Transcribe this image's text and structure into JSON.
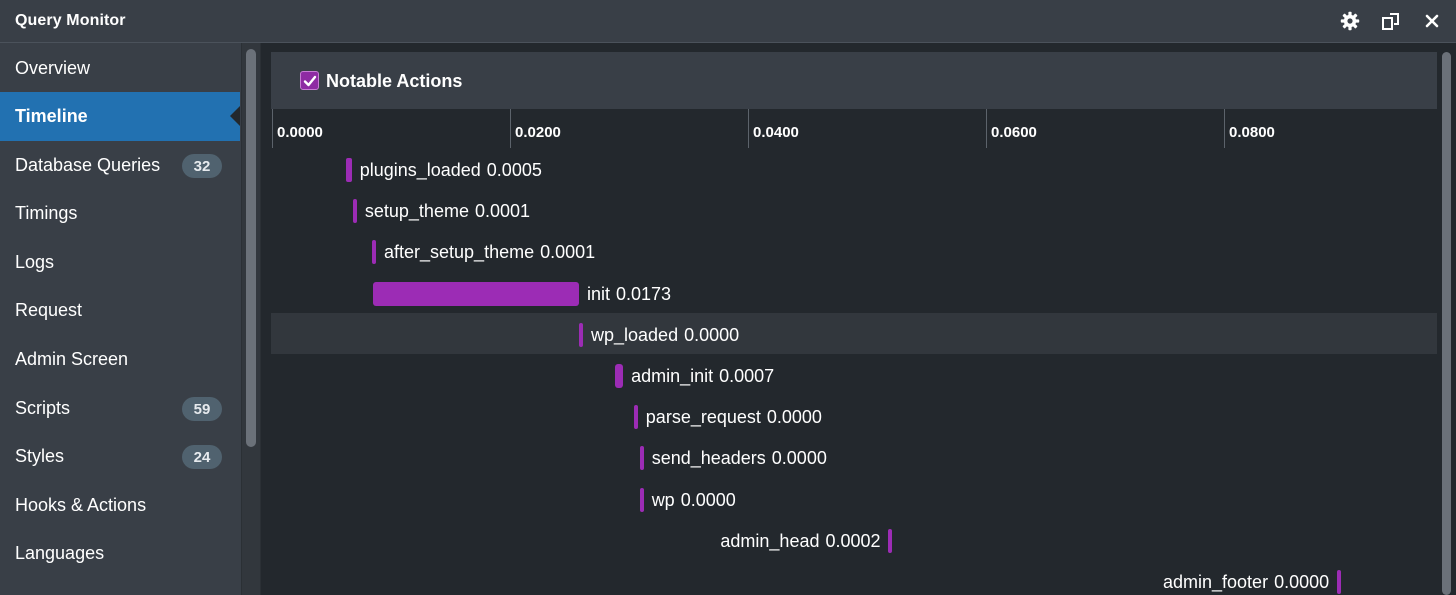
{
  "app": {
    "title": "Query Monitor"
  },
  "titlebar_icons": [
    "gear-icon",
    "popout-icon",
    "close-icon"
  ],
  "sidebar": {
    "items": [
      {
        "label": "Overview",
        "badge": ""
      },
      {
        "label": "Timeline",
        "badge": "",
        "active": true
      },
      {
        "label": "Database Queries",
        "badge": "32"
      },
      {
        "label": "Timings",
        "badge": ""
      },
      {
        "label": "Logs",
        "badge": ""
      },
      {
        "label": "Request",
        "badge": ""
      },
      {
        "label": "Admin Screen",
        "badge": ""
      },
      {
        "label": "Scripts",
        "badge": "59"
      },
      {
        "label": "Styles",
        "badge": "24"
      },
      {
        "label": "Hooks & Actions",
        "badge": ""
      },
      {
        "label": "Languages",
        "badge": ""
      }
    ]
  },
  "panel": {
    "title": "Notable Actions",
    "checked": true
  },
  "colors": {
    "accent": "#2271b1",
    "bar": "#9c2cb5",
    "background": "#23282d",
    "sidebar": "#393f47"
  },
  "chart_data": {
    "type": "bar",
    "title": "Notable Actions",
    "xlim": [
      0.0,
      0.098
    ],
    "ticks": [
      "0.0000",
      "0.0200",
      "0.0400",
      "0.0600",
      "0.0800"
    ],
    "tick_values": [
      0.0,
      0.02,
      0.04,
      0.06,
      0.08
    ],
    "items": [
      {
        "name": "plugins_loaded",
        "duration": "0.0005",
        "start": 0.0062
      },
      {
        "name": "setup_theme",
        "duration": "0.0001",
        "start": 0.0068
      },
      {
        "name": "after_setup_theme",
        "duration": "0.0001",
        "start": 0.0084
      },
      {
        "name": "init",
        "duration": "0.0173",
        "start": 0.0085
      },
      {
        "name": "wp_loaded",
        "duration": "0.0000",
        "start": 0.0258,
        "highlight": true
      },
      {
        "name": "admin_init",
        "duration": "0.0007",
        "start": 0.0288
      },
      {
        "name": "parse_request",
        "duration": "0.0000",
        "start": 0.0304
      },
      {
        "name": "send_headers",
        "duration": "0.0000",
        "start": 0.0309
      },
      {
        "name": "wp",
        "duration": "0.0000",
        "start": 0.0309
      },
      {
        "name": "admin_head",
        "duration": "0.0002",
        "start": 0.0518,
        "label_left": true
      },
      {
        "name": "admin_footer",
        "duration": "0.0000",
        "start": 0.0895,
        "label_left": true
      }
    ]
  }
}
